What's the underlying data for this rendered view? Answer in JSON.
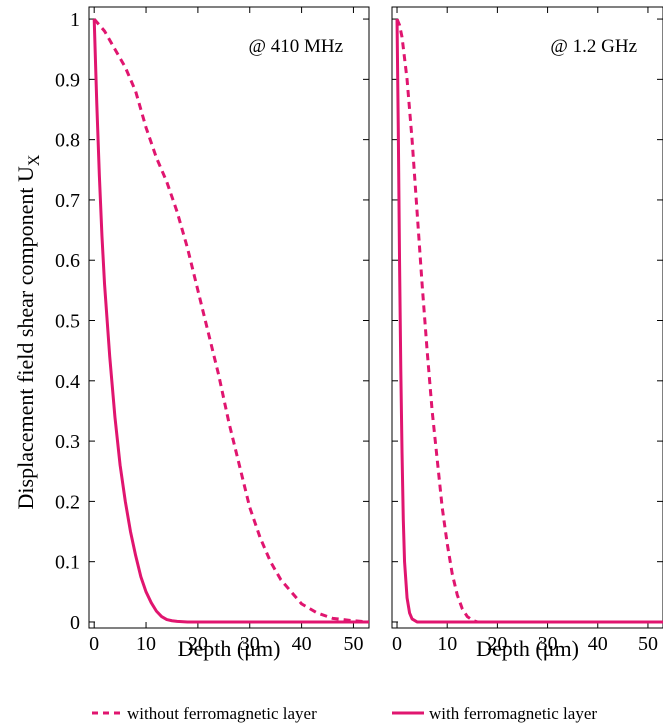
{
  "colors": {
    "series": "#e0156f",
    "axis": "#000000"
  },
  "figure": {
    "ylabel_main": "Displacement field shear component U",
    "ylabel_sub": "X"
  },
  "legend": {
    "dashed_label": "without ferromagnetic layer",
    "solid_label": "with ferromagnetic layer"
  },
  "chart_data": [
    {
      "type": "line",
      "annotation": "@ 410 MHz",
      "xlabel": "Depth (μm)",
      "xlim": [
        -1,
        53
      ],
      "ylim": [
        -0.01,
        1.02
      ],
      "xticks": [
        0,
        10,
        20,
        30,
        40,
        50
      ],
      "yticks": [
        0,
        0.1,
        0.2,
        0.3,
        0.4,
        0.5,
        0.6,
        0.7,
        0.8,
        0.9,
        1
      ],
      "series": [
        {
          "name": "without ferromagnetic layer",
          "style": "dashed",
          "x": [
            0,
            1,
            2,
            4,
            6,
            8,
            10,
            12,
            14,
            16,
            18,
            20,
            22,
            24,
            26,
            28,
            30,
            32,
            34,
            36,
            38,
            40,
            43,
            46,
            50,
            53
          ],
          "y": [
            1.0,
            0.99,
            0.98,
            0.95,
            0.92,
            0.88,
            0.82,
            0.77,
            0.73,
            0.68,
            0.62,
            0.55,
            0.48,
            0.41,
            0.33,
            0.26,
            0.19,
            0.14,
            0.1,
            0.07,
            0.05,
            0.03,
            0.015,
            0.006,
            0.002,
            0.0
          ]
        },
        {
          "name": "with ferromagnetic layer",
          "style": "solid",
          "x": [
            0,
            0.5,
            1,
            1.5,
            2,
            3,
            4,
            5,
            6,
            7,
            8,
            9,
            10,
            11,
            12,
            13,
            14,
            15,
            16,
            18,
            20,
            25,
            30,
            40,
            53
          ],
          "y": [
            1.0,
            0.86,
            0.74,
            0.64,
            0.56,
            0.44,
            0.34,
            0.26,
            0.2,
            0.15,
            0.11,
            0.075,
            0.05,
            0.032,
            0.018,
            0.009,
            0.004,
            0.002,
            0.001,
            0.0,
            0.0,
            0.0,
            0.0,
            0.0,
            0.0
          ]
        }
      ]
    },
    {
      "type": "line",
      "annotation": "@ 1.2 GHz",
      "xlabel": "Depth (μm)",
      "xlim": [
        -1,
        53
      ],
      "ylim": [
        -0.01,
        1.02
      ],
      "xticks": [
        0,
        10,
        20,
        30,
        40,
        50
      ],
      "yticks": [
        0,
        0.1,
        0.2,
        0.3,
        0.4,
        0.5,
        0.6,
        0.7,
        0.8,
        0.9,
        1
      ],
      "series": [
        {
          "name": "without ferromagnetic layer",
          "style": "dashed",
          "x": [
            0,
            0.5,
            1,
            2,
            3,
            4,
            5,
            6,
            7,
            8,
            9,
            10,
            11,
            12,
            13,
            14,
            15,
            16,
            20,
            30,
            53
          ],
          "y": [
            1.0,
            0.99,
            0.97,
            0.9,
            0.8,
            0.68,
            0.56,
            0.45,
            0.35,
            0.27,
            0.19,
            0.13,
            0.08,
            0.045,
            0.022,
            0.009,
            0.003,
            0.0,
            0.0,
            0.0,
            0.0
          ]
        },
        {
          "name": "with ferromagnetic layer",
          "style": "solid",
          "x": [
            0,
            0.25,
            0.5,
            0.75,
            1,
            1.25,
            1.5,
            2,
            2.5,
            3,
            4,
            5,
            10,
            53
          ],
          "y": [
            1.0,
            0.82,
            0.6,
            0.42,
            0.28,
            0.17,
            0.1,
            0.04,
            0.015,
            0.005,
            0.0,
            0.0,
            0.0,
            0.0
          ]
        }
      ]
    }
  ]
}
